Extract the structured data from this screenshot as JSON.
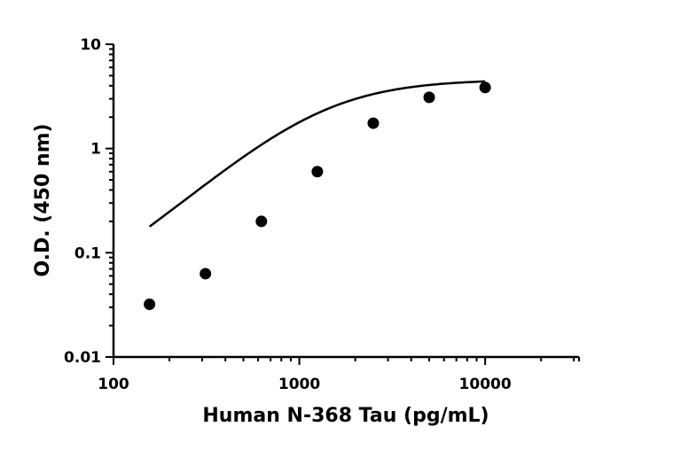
{
  "chart_data": {
    "type": "scatter",
    "title": "",
    "xlabel": "Human N-368 Tau (pg/mL)",
    "ylabel": "O.D. (450 nm)",
    "x_scale": "log",
    "y_scale": "log",
    "xlim": [
      100,
      32000
    ],
    "ylim": [
      0.01,
      10
    ],
    "x_ticks": [
      "100",
      "1000",
      "10000"
    ],
    "y_ticks": [
      "0.01",
      "0.1",
      "1",
      "10"
    ],
    "grid": false,
    "legend": "none",
    "fit": "4-parameter logistic curve through the points",
    "series": [
      {
        "x": [
          156.25,
          312.5,
          625,
          1250,
          2500,
          5000,
          10000
        ],
        "y": [
          0.032,
          0.063,
          0.2,
          0.6,
          1.75,
          3.1,
          3.85
        ]
      }
    ],
    "colors": {
      "marker": "#000000",
      "line": "#000000",
      "axis": "#000000"
    }
  }
}
